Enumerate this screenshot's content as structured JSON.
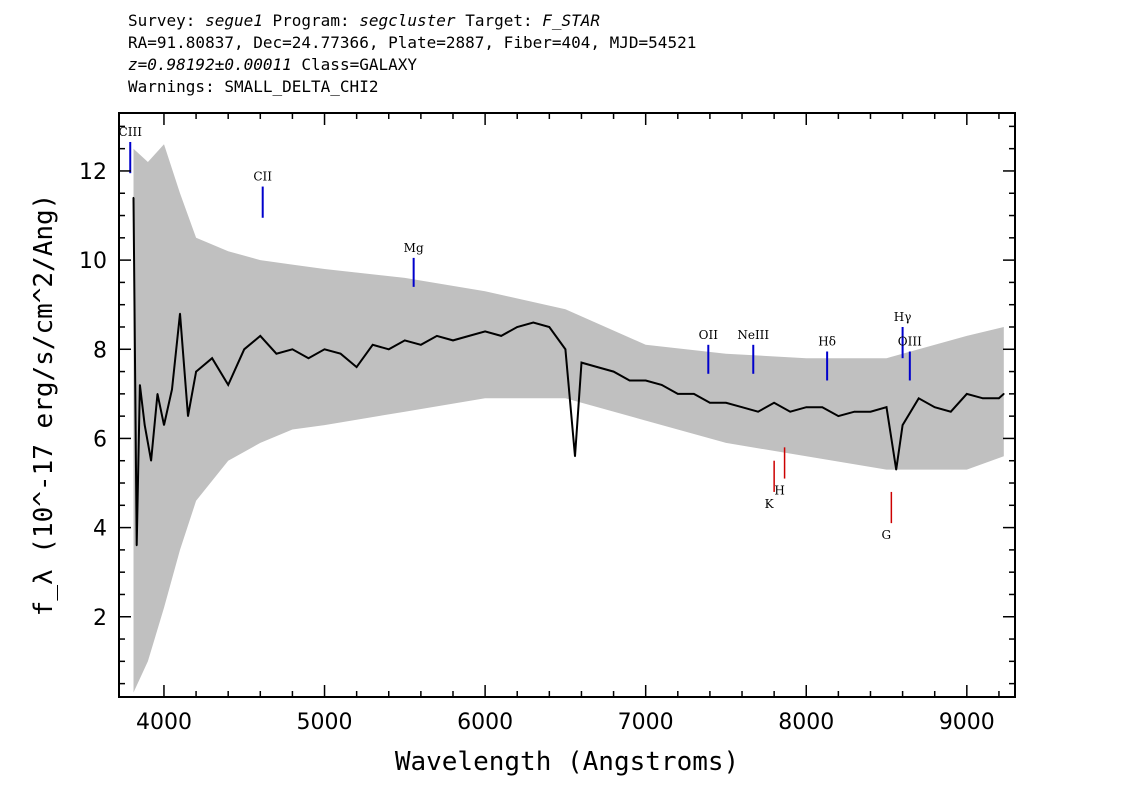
{
  "header": {
    "survey_label": "Survey:",
    "survey_value": "segue1",
    "program_label": "Program:",
    "program_value": "segcluster",
    "target_label": "Target:",
    "target_value": "F_STAR",
    "line2": "RA=91.80837, Dec=24.77366, Plate=2887, Fiber=404, MJD=54521",
    "z_value": "z=0.98192±0.00011",
    "class_text": "Class=GALAXY",
    "warnings": "Warnings: SMALL_DELTA_CHI2"
  },
  "chart_data": {
    "type": "line",
    "xlabel": "Wavelength (Angstroms)",
    "ylabel": "f_λ (10^-17 erg/s/cm^2/Ang)",
    "xlim": [
      3720,
      9300
    ],
    "ylim": [
      0.2,
      13.3
    ],
    "x_ticks": [
      4000,
      5000,
      6000,
      7000,
      8000,
      9000
    ],
    "y_ticks": [
      2,
      4,
      6,
      8,
      10,
      12
    ],
    "series": [
      {
        "role": "flux",
        "color": "#000000",
        "x": [
          3810,
          3830,
          3850,
          3880,
          3920,
          3960,
          4000,
          4050,
          4100,
          4150,
          4200,
          4300,
          4400,
          4500,
          4600,
          4700,
          4800,
          4900,
          5000,
          5100,
          5200,
          5300,
          5400,
          5500,
          5600,
          5700,
          5800,
          5900,
          6000,
          6100,
          6200,
          6300,
          6400,
          6500,
          6560,
          6600,
          6700,
          6800,
          6900,
          7000,
          7100,
          7200,
          7300,
          7400,
          7500,
          7600,
          7700,
          7800,
          7900,
          8000,
          8100,
          8200,
          8300,
          8400,
          8500,
          8560,
          8600,
          8700,
          8800,
          8900,
          9000,
          9100,
          9200,
          9230
        ],
        "y": [
          11.4,
          3.6,
          7.2,
          6.3,
          5.5,
          7.0,
          6.3,
          7.1,
          8.8,
          6.5,
          7.5,
          7.8,
          7.2,
          8.0,
          8.3,
          7.9,
          8.0,
          7.8,
          8.0,
          7.9,
          7.6,
          8.1,
          8.0,
          8.2,
          8.1,
          8.3,
          8.2,
          8.3,
          8.4,
          8.3,
          8.5,
          8.6,
          8.5,
          8.0,
          5.6,
          7.7,
          7.6,
          7.5,
          7.3,
          7.3,
          7.2,
          7.0,
          7.0,
          6.8,
          6.8,
          6.7,
          6.6,
          6.8,
          6.6,
          6.7,
          6.7,
          6.5,
          6.6,
          6.6,
          6.7,
          5.3,
          6.3,
          6.9,
          6.7,
          6.6,
          7.0,
          6.9,
          6.9,
          7.0
        ]
      },
      {
        "role": "error-envelope",
        "color": "#c0c0c0",
        "x": [
          3810,
          3900,
          4000,
          4100,
          4200,
          4400,
          4600,
          4800,
          5000,
          5500,
          6000,
          6500,
          7000,
          7500,
          8000,
          8500,
          9000,
          9230
        ],
        "upper": [
          12.5,
          12.2,
          12.6,
          11.5,
          10.5,
          10.2,
          10.0,
          9.9,
          9.8,
          9.6,
          9.3,
          8.9,
          8.1,
          7.9,
          7.8,
          7.8,
          8.3,
          8.5
        ],
        "lower": [
          0.3,
          1.0,
          2.2,
          3.5,
          4.6,
          5.5,
          5.9,
          6.2,
          6.3,
          6.6,
          6.9,
          6.9,
          6.4,
          5.9,
          5.6,
          5.3,
          5.3,
          5.6
        ]
      }
    ],
    "emission_lines": [
      {
        "label": "CIII",
        "x": 3790,
        "y_from": 11.95,
        "y_to": 12.65,
        "color": "#0000cc"
      },
      {
        "label": "CII",
        "x": 4615,
        "y_from": 10.95,
        "y_to": 11.65,
        "color": "#0000cc"
      },
      {
        "label": "Mg",
        "x": 5555,
        "y_from": 9.4,
        "y_to": 10.05,
        "color": "#0000cc"
      },
      {
        "label": "OII",
        "x": 7390,
        "y_from": 7.45,
        "y_to": 8.1,
        "color": "#0000cc"
      },
      {
        "label": "NeIII",
        "x": 7670,
        "y_from": 7.45,
        "y_to": 8.1,
        "color": "#0000cc"
      },
      {
        "label": "Hδ",
        "x": 8130,
        "y_from": 7.3,
        "y_to": 7.95,
        "color": "#0000cc"
      },
      {
        "label": "Hγ",
        "x": 8600,
        "y_from": 7.8,
        "y_to": 8.5,
        "color": "#0000cc"
      },
      {
        "label": "OIII",
        "x": 8645,
        "y_from": 7.3,
        "y_to": 7.95,
        "color": "#0000cc"
      }
    ],
    "absorption_lines": [
      {
        "label": "K",
        "x": 7800,
        "y_from": 4.8,
        "y_to": 5.5,
        "color": "#cc0000"
      },
      {
        "label": "H",
        "x": 7865,
        "y_from": 5.1,
        "y_to": 5.8,
        "color": "#cc0000"
      },
      {
        "label": "G",
        "x": 8530,
        "y_from": 4.1,
        "y_to": 4.8,
        "color": "#cc0000"
      }
    ],
    "grid": false,
    "legend": "none"
  }
}
